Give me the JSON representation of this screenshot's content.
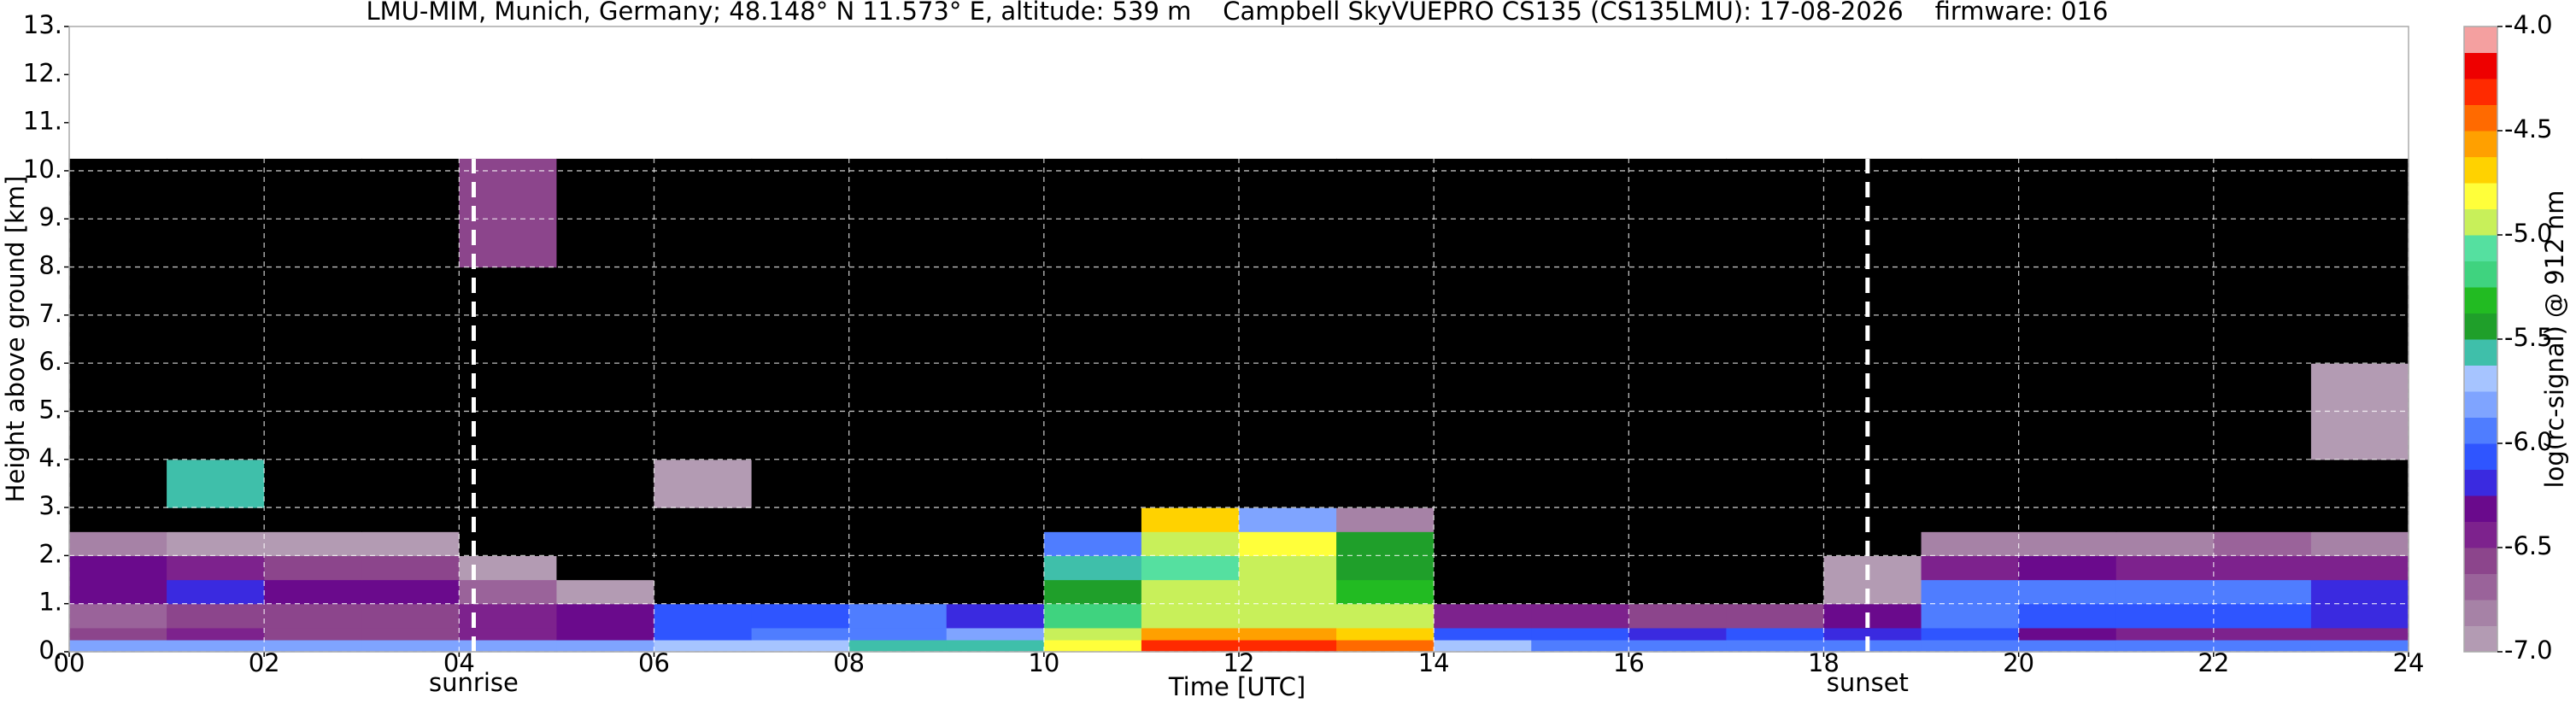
{
  "chart_data": {
    "type": "heatmap",
    "title": "LMU-MIM, Munich, Germany; 48.148° N 11.573° E, altitude: 539 m    Campbell SkyVUEPRO CS135 (CS135LMU): 17-08-2026    firmware: 016",
    "x_label": "Time [UTC]",
    "y_label": "Height above ground [km]",
    "colorbar_label": "log(rc-signal) @ 912 nm",
    "xlim": [
      0,
      24
    ],
    "ylim": [
      0,
      13
    ],
    "xticks": [
      {
        "value": 0,
        "label": "00"
      },
      {
        "value": 2,
        "label": "02"
      },
      {
        "value": 4,
        "label": "04"
      },
      {
        "value": 6,
        "label": "06"
      },
      {
        "value": 8,
        "label": "08"
      },
      {
        "value": 10,
        "label": "10"
      },
      {
        "value": 12,
        "label": "12"
      },
      {
        "value": 14,
        "label": "14"
      },
      {
        "value": 16,
        "label": "16"
      },
      {
        "value": 18,
        "label": "18"
      },
      {
        "value": 20,
        "label": "20"
      },
      {
        "value": 22,
        "label": "22"
      },
      {
        "value": 24,
        "label": "24"
      }
    ],
    "yticks": [
      {
        "value": 0,
        "label": "0."
      },
      {
        "value": 1,
        "label": "1."
      },
      {
        "value": 2,
        "label": "2."
      },
      {
        "value": 3,
        "label": "3."
      },
      {
        "value": 4,
        "label": "4."
      },
      {
        "value": 5,
        "label": "5."
      },
      {
        "value": 6,
        "label": "6."
      },
      {
        "value": 7,
        "label": "7."
      },
      {
        "value": 8,
        "label": "8."
      },
      {
        "value": 9,
        "label": "9."
      },
      {
        "value": 10,
        "label": "10."
      },
      {
        "value": 11,
        "label": "11."
      },
      {
        "value": 12,
        "label": "12."
      },
      {
        "value": 13,
        "label": "13."
      }
    ],
    "grid": true,
    "clim": [
      -7,
      -4
    ],
    "cticks": [
      {
        "value": -4,
        "label": "-4.0"
      },
      {
        "value": -4.5,
        "label": "-4.5"
      },
      {
        "value": -5,
        "label": "-5.0"
      },
      {
        "value": -5.5,
        "label": "-5.5"
      },
      {
        "value": -6,
        "label": "-6.0"
      },
      {
        "value": -6.5,
        "label": "-6.5"
      },
      {
        "value": -7,
        "label": "-7.0"
      }
    ],
    "colors": [
      "#b39bb3",
      "#a682a6",
      "#9a639a",
      "#8c458c",
      "#7d228d",
      "#6a0a8c",
      "#3a2ae0",
      "#2f55ff",
      "#4f7dff",
      "#7fa4ff",
      "#a6c4ff",
      "#3fbfaa",
      "#1f9f2a",
      "#22bb22",
      "#3fd37f",
      "#55e0a0",
      "#c8f05a",
      "#ffff3a",
      "#ffd200",
      "#ffa000",
      "#ff6a00",
      "#ff2a00",
      "#ee0000",
      "#f4a0a0"
    ],
    "under_color": "#000000",
    "x_edges": [
      0,
      1,
      2,
      3,
      4,
      5,
      6,
      7,
      8,
      9,
      10,
      11,
      12,
      13,
      14,
      15,
      16,
      17,
      18,
      19,
      20,
      21,
      22,
      23,
      24
    ],
    "y_edges": [
      0,
      0.25,
      0.5,
      1,
      1.5,
      2,
      2.5,
      3,
      4,
      6,
      8,
      10.25
    ],
    "z": [
      [
        -5.8,
        -5.8,
        -5.8,
        -5.8,
        -5.8,
        -5.8,
        -5.7,
        -5.7,
        -5.6,
        -5.6,
        -4.8,
        -4.3,
        -4.3,
        -4.4,
        -5.7,
        -5.9,
        -6.0,
        -6.0,
        -6.0,
        -6.0,
        -6.0,
        -6.0,
        -6.0,
        -6.0
      ],
      [
        -6.6,
        -6.5,
        -6.6,
        -6.6,
        -6.4,
        -6.3,
        -6.1,
        -6.0,
        -5.9,
        -5.8,
        -5.0,
        -4.6,
        -4.6,
        -4.7,
        -6.1,
        -6.1,
        -6.2,
        -6.1,
        -6.2,
        -6.1,
        -6.3,
        -6.4,
        -6.4,
        -6.4
      ],
      [
        -6.7,
        -6.6,
        -6.6,
        -6.6,
        -6.5,
        -6.3,
        -6.1,
        -6.1,
        -6.0,
        -6.2,
        -5.2,
        -4.9,
        -4.9,
        -5.0,
        -6.4,
        -6.5,
        -6.6,
        -6.6,
        -6.3,
        -6.0,
        -6.1,
        -6.1,
        -6.1,
        -6.2
      ],
      [
        -6.3,
        -6.2,
        -6.3,
        -6.3,
        -6.7,
        -6.9,
        -7.1,
        -7.2,
        -7.1,
        -7.3,
        -5.4,
        -5.0,
        -5.0,
        -5.3,
        -7.2,
        -7.3,
        -7.4,
        -7.3,
        -6.9,
        -6.0,
        -5.9,
        -6.0,
        -6.0,
        -6.2
      ],
      [
        -6.3,
        -6.4,
        -6.6,
        -6.6,
        -6.9,
        -7.2,
        -7.4,
        -7.4,
        -7.4,
        -7.4,
        -5.6,
        -5.1,
        -5.0,
        -5.4,
        -7.4,
        -7.4,
        -7.4,
        -7.4,
        -7.0,
        -6.4,
        -6.3,
        -6.4,
        -6.4,
        -6.5
      ],
      [
        -6.8,
        -6.9,
        -6.9,
        -6.9,
        -7.3,
        -7.4,
        -7.4,
        -7.4,
        -7.4,
        -7.4,
        -6.0,
        -4.9,
        -4.8,
        -5.4,
        -7.4,
        -7.4,
        -7.4,
        -7.4,
        -7.2,
        -6.8,
        -6.8,
        -6.8,
        -6.7,
        -6.8
      ],
      [
        -7.4,
        -7.3,
        -7.5,
        -7.5,
        -7.5,
        -7.5,
        -7.5,
        -7.5,
        -7.5,
        -7.5,
        -7.2,
        -4.7,
        -5.8,
        -6.8,
        -7.5,
        -7.5,
        -7.5,
        -7.5,
        -7.3,
        -7.5,
        -7.5,
        -7.5,
        -7.5,
        -7.5
      ],
      [
        -7.5,
        -5.6,
        -7.5,
        -7.5,
        -7.5,
        -7.5,
        -6.9,
        -7.5,
        -7.5,
        -7.5,
        -7.5,
        -7.5,
        -7.5,
        -7.5,
        -7.5,
        -7.5,
        -7.5,
        -7.5,
        -7.5,
        -7.5,
        -7.5,
        -7.5,
        -7.5,
        -7.5
      ],
      [
        -7.6,
        -7.6,
        -7.6,
        -7.6,
        -7.6,
        -7.6,
        -7.6,
        -7.6,
        -7.6,
        -7.6,
        -7.6,
        -7.6,
        -7.6,
        -7.6,
        -7.6,
        -7.6,
        -7.6,
        -7.6,
        -7.6,
        -7.6,
        -7.6,
        -7.6,
        -7.6,
        -6.9
      ],
      [
        -7.6,
        -7.6,
        -7.6,
        -7.6,
        -7.6,
        -7.6,
        -7.6,
        -7.6,
        -7.6,
        -7.6,
        -7.6,
        -7.6,
        -7.6,
        -7.6,
        -7.6,
        -7.6,
        -7.6,
        -7.6,
        -7.6,
        -7.6,
        -7.6,
        -7.6,
        -7.6,
        -7.6
      ],
      [
        -7.6,
        -7.6,
        -7.6,
        -7.6,
        -6.6,
        -7.6,
        -7.6,
        -7.6,
        -7.6,
        -7.6,
        -7.6,
        -7.6,
        -7.6,
        -7.6,
        -7.6,
        -7.6,
        -7.6,
        -7.6,
        -7.6,
        -7.6,
        -7.6,
        -7.6,
        -7.6,
        -7.6
      ]
    ],
    "annotations": [
      {
        "x": 4.15,
        "label": "sunrise"
      },
      {
        "x": 18.45,
        "label": "sunset"
      }
    ]
  }
}
